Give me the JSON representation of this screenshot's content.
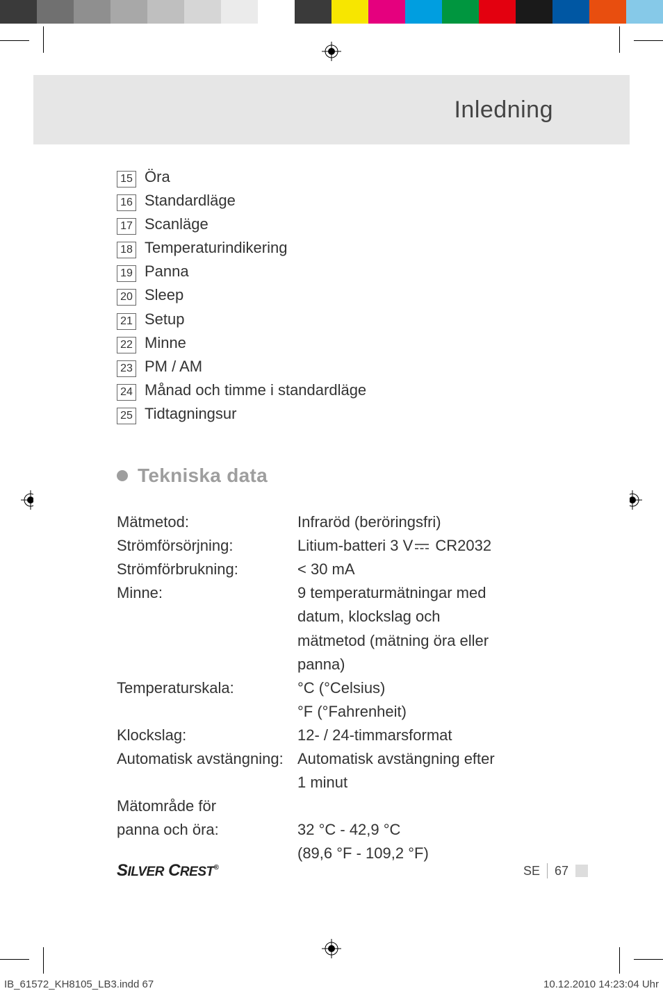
{
  "colorbar": [
    "#3a3a3a",
    "#707070",
    "#8f8f8f",
    "#a8a8a8",
    "#bfbfbf",
    "#d6d6d6",
    "#ebebeb",
    "#ffffff",
    "#3a3a3a",
    "#f7e600",
    "#e5007e",
    "#009ee0",
    "#00963f",
    "#e3000f",
    "#1a1a1a",
    "#0057a3",
    "#e84e0f",
    "#86c9e8"
  ],
  "header": {
    "title": "Inledning"
  },
  "list": [
    {
      "n": "15",
      "t": "Öra"
    },
    {
      "n": "16",
      "t": "Standardläge"
    },
    {
      "n": "17",
      "t": "Scanläge"
    },
    {
      "n": "18",
      "t": "Temperaturindikering"
    },
    {
      "n": "19",
      "t": "Panna"
    },
    {
      "n": "20",
      "t": "Sleep"
    },
    {
      "n": "21",
      "t": "Setup"
    },
    {
      "n": "22",
      "t": "Minne"
    },
    {
      "n": "23",
      "t": "PM / AM"
    },
    {
      "n": "24",
      "t": "Månad och timme i standardläge"
    },
    {
      "n": "25",
      "t": "Tidtagningsur"
    }
  ],
  "section": {
    "title": "Tekniska data"
  },
  "specs": {
    "rows": [
      {
        "label": "Mätmetod:",
        "value": "Infraröd (beröringsfri)"
      },
      {
        "label": "Strömförsörjning:",
        "value_pre": "Litium-batteri 3 V",
        "value_post": " CR2032",
        "dc": true
      },
      {
        "label": "Strömförbrukning:",
        "value": "< 30 mA"
      },
      {
        "label": "Minne:",
        "value": "9 temperaturmätningar med datum, klockslag och mätmetod (mätning öra eller panna)"
      },
      {
        "label": "Temperaturskala:",
        "value": "°C (°Celsius)\n°F (°Fahrenheit)"
      },
      {
        "label": "Klockslag:",
        "value": "12- / 24-timmarsformat"
      },
      {
        "label": "Automatisk avstängning:",
        "value": "Automatisk avstängning efter 1  minut"
      },
      {
        "label": "Mätområde för panna och öra:",
        "value": "32 °C - 42,9 °C\n(89,6 °F - 109,2 °F)",
        "label_multiline": true
      }
    ]
  },
  "footer": {
    "brand": "SILVER CREST",
    "lang": "SE",
    "page": "67"
  },
  "meta": {
    "file": "IB_61572_KH8105_LB3.indd   67",
    "stamp": "10.12.2010   14:23:04 Uhr"
  }
}
